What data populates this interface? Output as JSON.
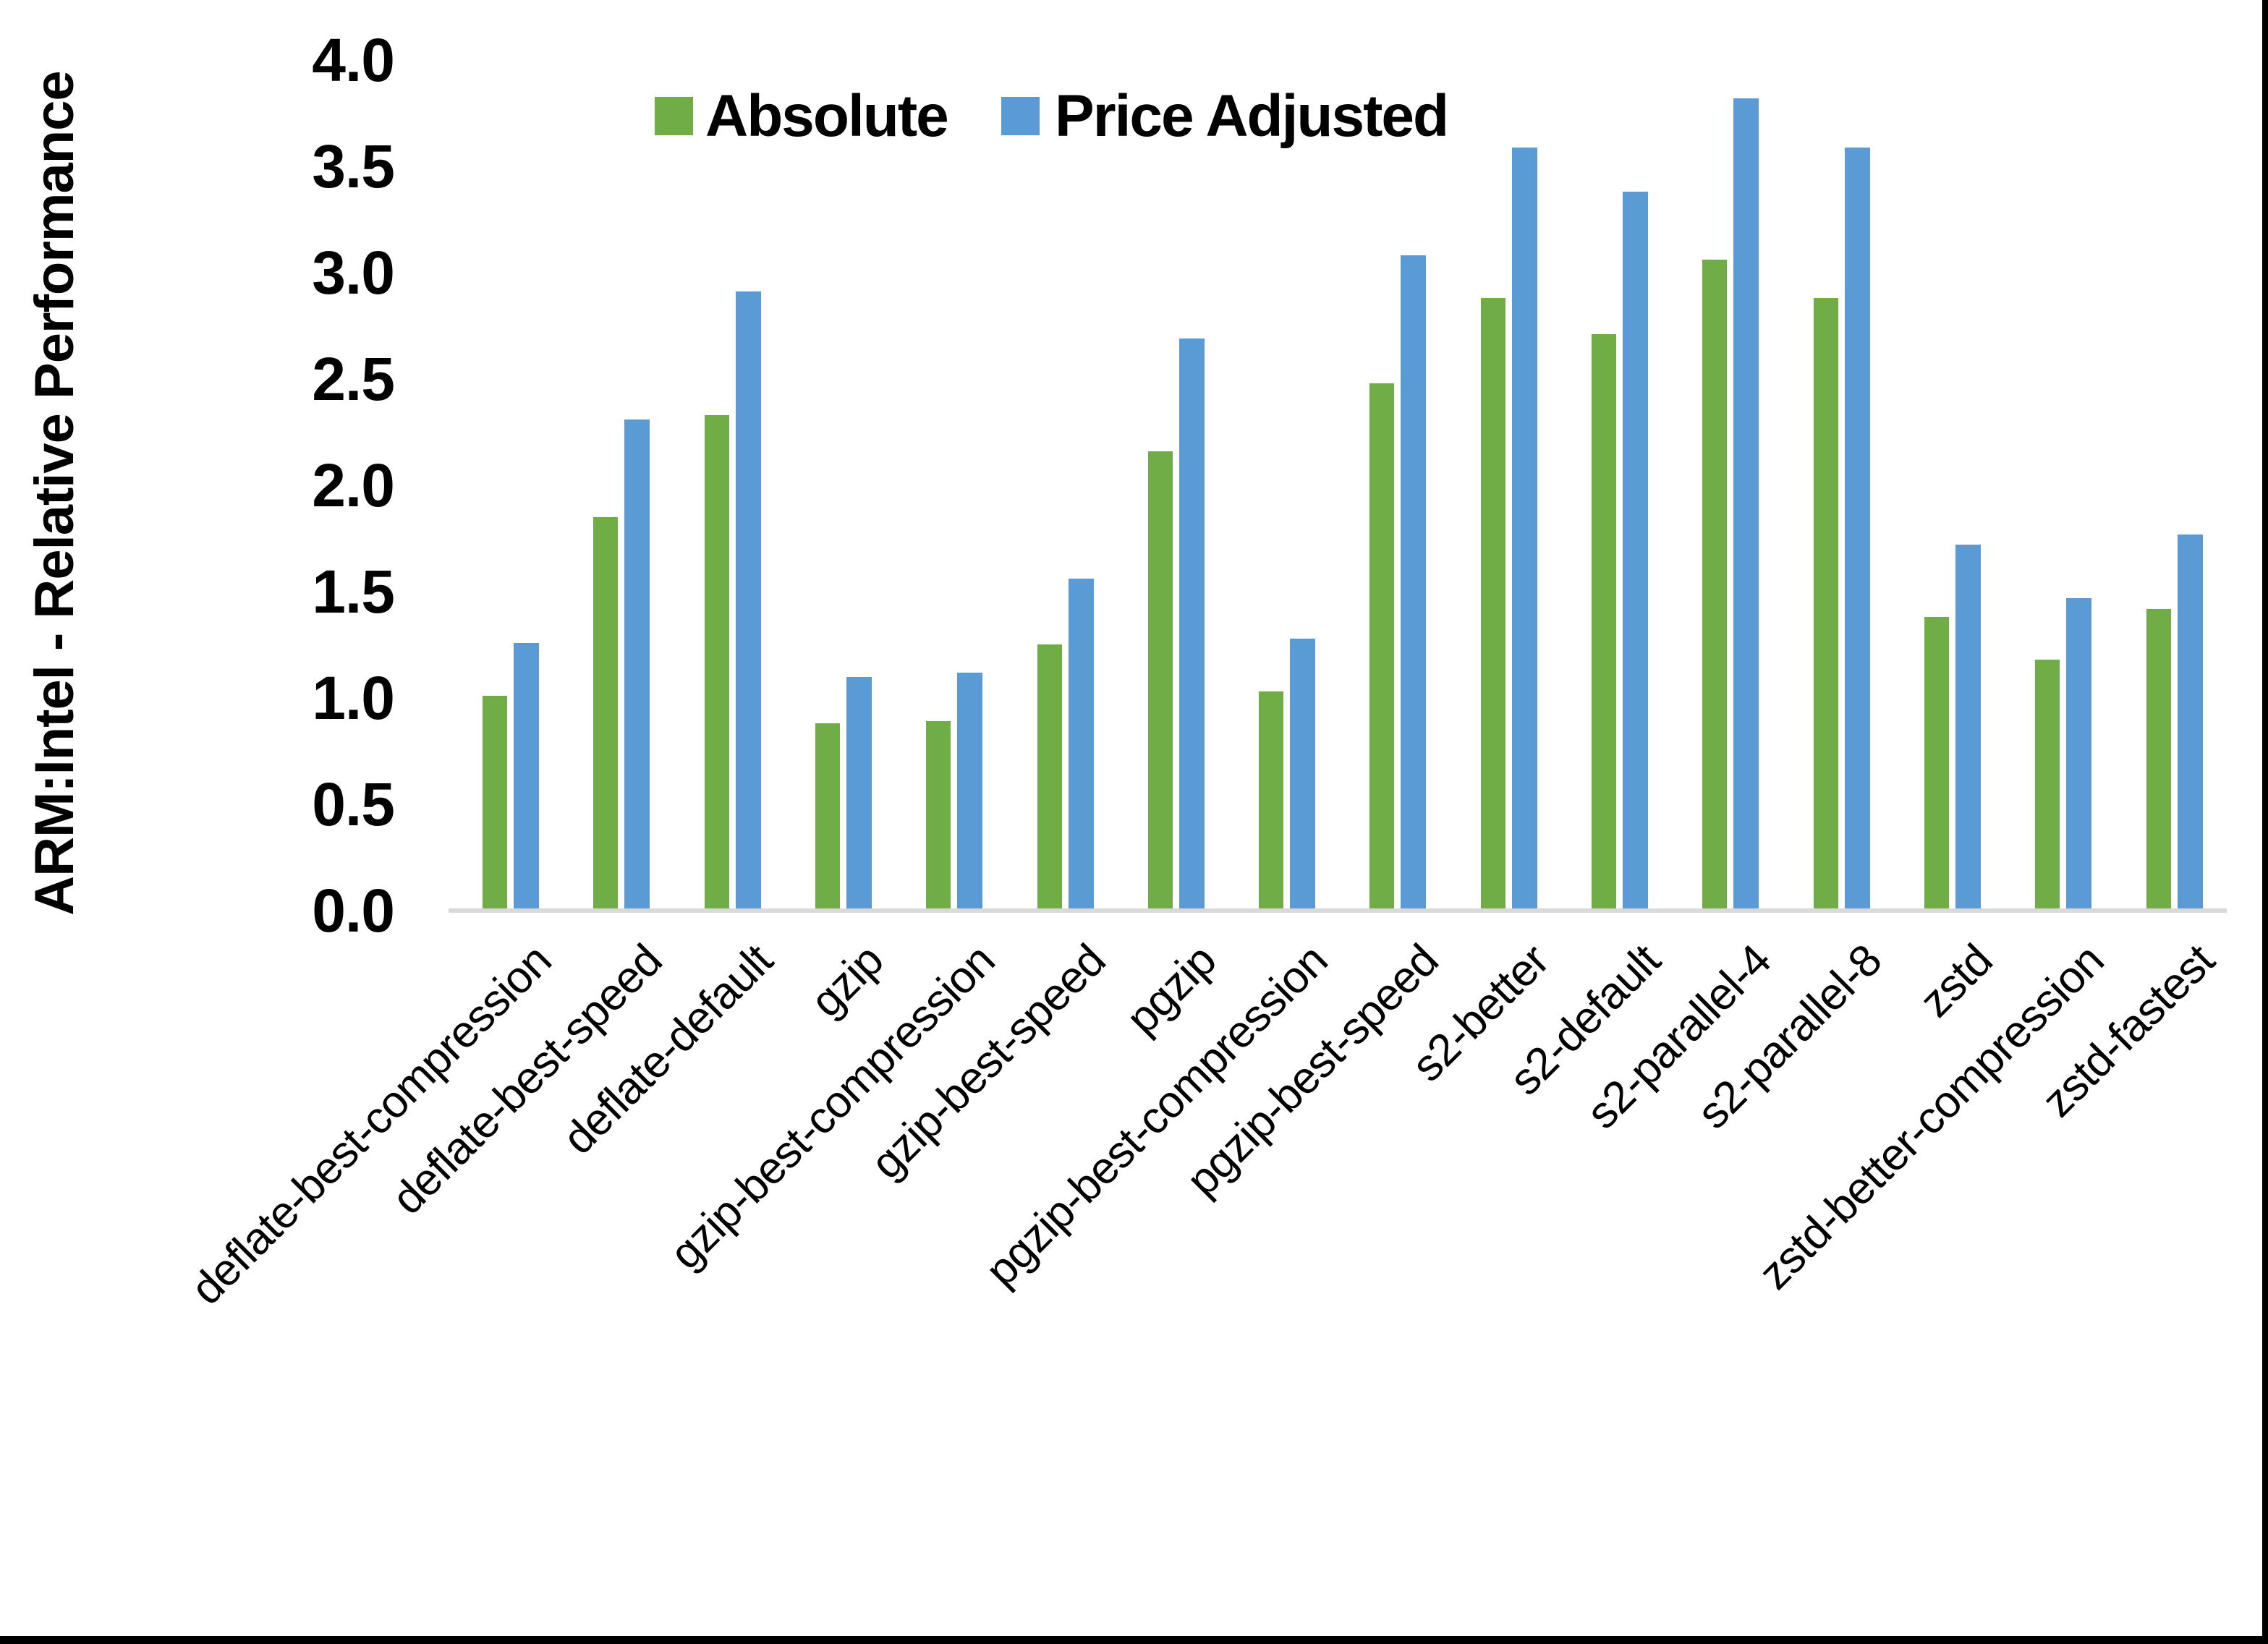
{
  "chart_data": {
    "type": "bar",
    "title": "",
    "ylabel": "ARM:Intel - Relative Performance",
    "xlabel": "",
    "categories": [
      "deflate-best-compression",
      "deflate-best-speed",
      "deflate-default",
      "gzip",
      "gzip-best-compression",
      "gzip-best-speed",
      "pgzip",
      "pgzip-best-compression",
      "pgzip-best-speed",
      "s2-better",
      "s2-default",
      "s2-parallel-4",
      "s2-parallel-8",
      "zstd",
      "zstd-better-compression",
      "zstd-fastest"
    ],
    "series": [
      {
        "name": "Absolute",
        "color": "#70AD47",
        "values": [
          1.01,
          1.85,
          2.33,
          0.88,
          0.89,
          1.25,
          2.16,
          1.03,
          2.48,
          2.88,
          2.71,
          3.06,
          2.88,
          1.38,
          1.18,
          1.42
        ]
      },
      {
        "name": "Price Adjusted",
        "color": "#5B9BD5",
        "values": [
          1.26,
          2.31,
          2.91,
          1.1,
          1.12,
          1.56,
          2.69,
          1.28,
          3.08,
          3.59,
          3.38,
          3.82,
          3.59,
          1.72,
          1.47,
          1.77
        ]
      }
    ],
    "ylim": [
      0.0,
      4.0
    ],
    "ytick_step": 0.5,
    "ytick_labels": [
      "0.0",
      "0.5",
      "1.0",
      "1.5",
      "2.0",
      "2.5",
      "3.0",
      "3.5",
      "4.0"
    ],
    "grid": false,
    "legend_position": "top-center",
    "axis_line_color": "#D9D9D9",
    "frame_color": "#000000",
    "text_color": "#000000"
  }
}
